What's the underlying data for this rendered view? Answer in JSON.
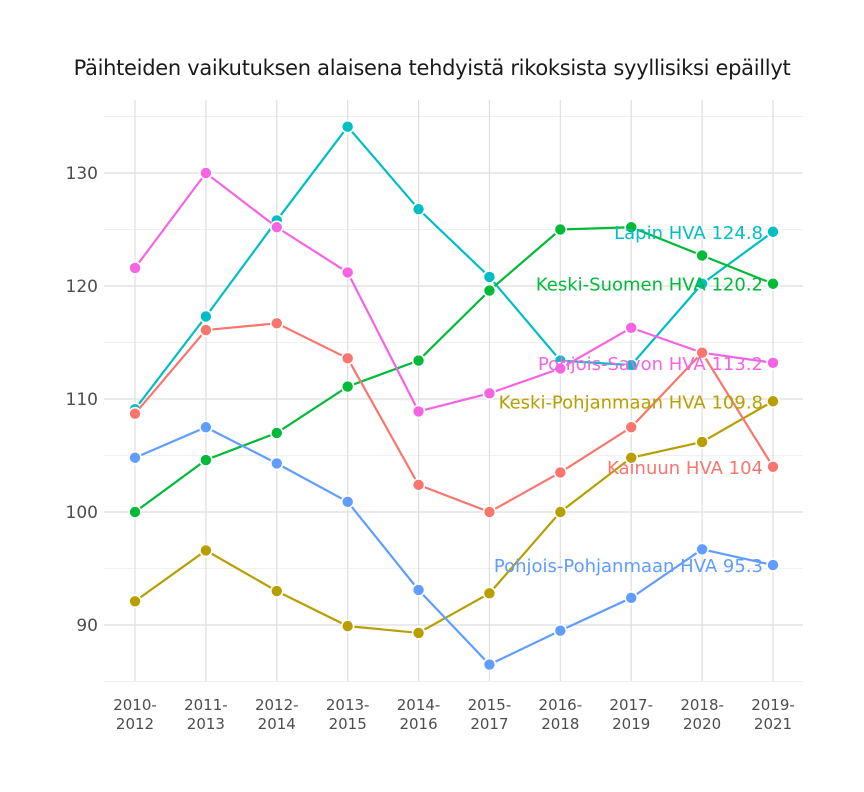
{
  "chart_data": {
    "type": "line",
    "title": "Päihteiden vaikutuksen alaisena tehdyistä rikoksista syyllisiksi epäillyt",
    "xlabel": "",
    "ylabel": "",
    "ylim": [
      85,
      136
    ],
    "yticks": [
      90,
      100,
      110,
      120,
      130
    ],
    "grid": true,
    "legend": "direct labels at last point",
    "categories": [
      "2010-2012",
      "2011-2013",
      "2012-2014",
      "2013-2015",
      "2014-2016",
      "2015-2017",
      "2016-2018",
      "2017-2019",
      "2018-2020",
      "2019-2021"
    ],
    "series": [
      {
        "name": "Lapin HVA",
        "color": "#00BFC4",
        "label": "Lapin HVA 124.8",
        "values": [
          109.1,
          117.3,
          125.8,
          134.1,
          126.8,
          120.8,
          113.4,
          113.0,
          120.2,
          124.8
        ]
      },
      {
        "name": "Keski-Suomen HVA",
        "color": "#00BA38",
        "label": "Keski-Suomen HVA 120.2",
        "values": [
          100.0,
          104.6,
          107.0,
          111.1,
          113.4,
          119.6,
          125.0,
          125.2,
          122.7,
          120.2
        ]
      },
      {
        "name": "Pohjois-Savon HVA",
        "color": "#F564E3",
        "label": "Pohjois-Savon HVA 113.2",
        "values": [
          121.6,
          130.0,
          125.2,
          121.2,
          108.9,
          110.5,
          112.7,
          116.3,
          114.1,
          113.2
        ]
      },
      {
        "name": "Keski-Pohjanmaan HVA",
        "color": "#B79F00",
        "label": "Keski-Pohjanmaan HVA 109.8",
        "values": [
          92.1,
          96.6,
          93.0,
          89.9,
          89.3,
          92.8,
          100.0,
          104.8,
          106.2,
          109.8
        ]
      },
      {
        "name": "Kainuun HVA",
        "color": "#F8766D",
        "label": "Kainuun HVA 104",
        "values": [
          108.7,
          116.1,
          116.7,
          113.6,
          102.4,
          100.0,
          103.5,
          107.5,
          114.1,
          104.0
        ]
      },
      {
        "name": "Pohjois-Pohjanmaan HVA",
        "color": "#619CFF",
        "label": "Pohjois-Pohjanmaan HVA 95.3",
        "values": [
          104.8,
          107.5,
          104.3,
          100.9,
          93.1,
          86.5,
          89.5,
          92.4,
          96.7,
          95.3
        ]
      }
    ]
  }
}
